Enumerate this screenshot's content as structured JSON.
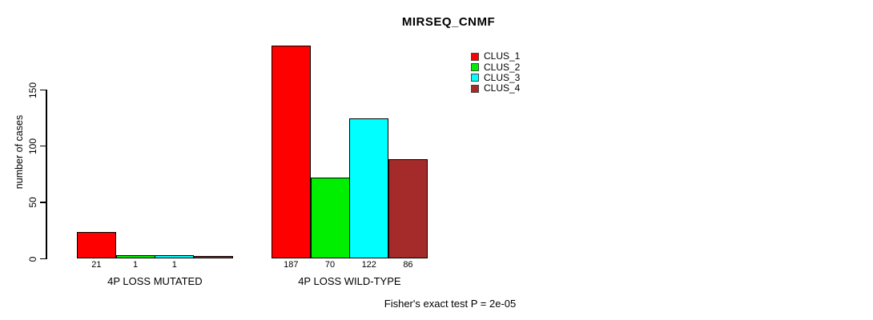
{
  "chart_data": {
    "type": "bar",
    "title": "MIRSEQ_CNMF",
    "ylabel": "number of cases",
    "xlabel": "",
    "ylim": [
      0,
      150
    ],
    "yticks": [
      0,
      50,
      100,
      150
    ],
    "grid": false,
    "legend_position": "top-right",
    "series": [
      {
        "name": "CLUS_1",
        "color": "#FF0000"
      },
      {
        "name": "CLUS_2",
        "color": "#00EE00"
      },
      {
        "name": "CLUS_3",
        "color": "#00FFFF"
      },
      {
        "name": "CLUS_4",
        "color": "#A52A2A"
      }
    ],
    "categories": [
      "4P LOSS MUTATED",
      "4P LOSS WILD-TYPE"
    ],
    "groups": [
      {
        "label": "4P LOSS MUTATED",
        "values": [
          21,
          1,
          1,
          0
        ],
        "bar_labels": [
          "21",
          "1",
          "1",
          ""
        ]
      },
      {
        "label": "4P LOSS WILD-TYPE",
        "values": [
          187,
          70,
          122,
          86
        ],
        "bar_labels": [
          "187",
          "70",
          "122",
          "86"
        ]
      }
    ],
    "annotation": "Fisher's exact test P = 2e-05"
  }
}
